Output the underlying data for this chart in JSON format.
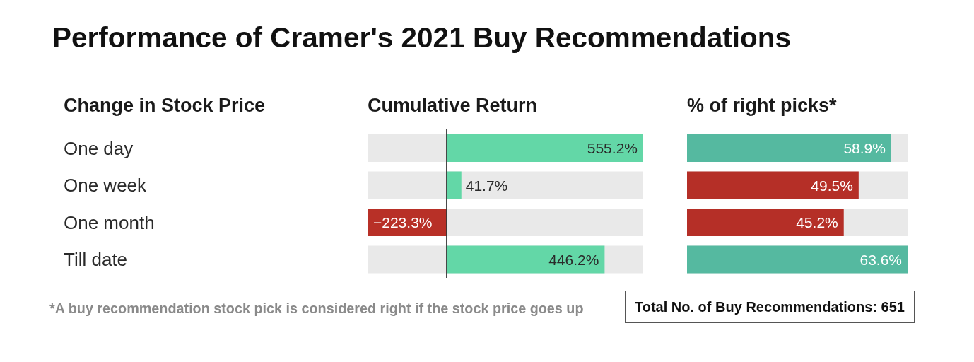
{
  "chart_data": [
    {
      "type": "bar",
      "orientation": "horizontal",
      "title": "Performance of Cramer's 2021 Buy Recommendations",
      "ylabel": "Change in Stock Price",
      "xlabel": "Cumulative Return",
      "categories": [
        "One day",
        "One week",
        "One month",
        "Till date"
      ],
      "values": [
        555.2,
        41.7,
        -223.3,
        446.2
      ],
      "colors": [
        "#63d7a7",
        "#63d7a7",
        "#b83027",
        "#63d7a7"
      ],
      "value_labels": [
        "555.2%",
        "41.7%",
        "−223.3%",
        "446.2%"
      ],
      "xlim": [
        -223.3,
        555.2
      ],
      "tick_labels": "y",
      "ref_lines": [
        {
          "axis": "x",
          "value": 0,
          "color": "#333333"
        }
      ],
      "annotations": [
        "*A buy recommendation stock pick is considered right if the stock price goes up"
      ]
    },
    {
      "type": "bar",
      "orientation": "horizontal",
      "xlabel": "% of right picks*",
      "categories": [
        null,
        null,
        null,
        null
      ],
      "values": [
        58.9,
        49.5,
        45.2,
        63.6
      ],
      "colors": [
        "#55b9a0",
        "#b52f27",
        "#b52f27",
        "#55b9a0"
      ],
      "value_labels": [
        "58.9%",
        "49.5%",
        "45.2%",
        "63.6%"
      ],
      "xlim": [
        0,
        63.6
      ],
      "tick_labels": false,
      "annotations": [
        "Total No. of Buy Recommendations: 651"
      ]
    }
  ]
}
